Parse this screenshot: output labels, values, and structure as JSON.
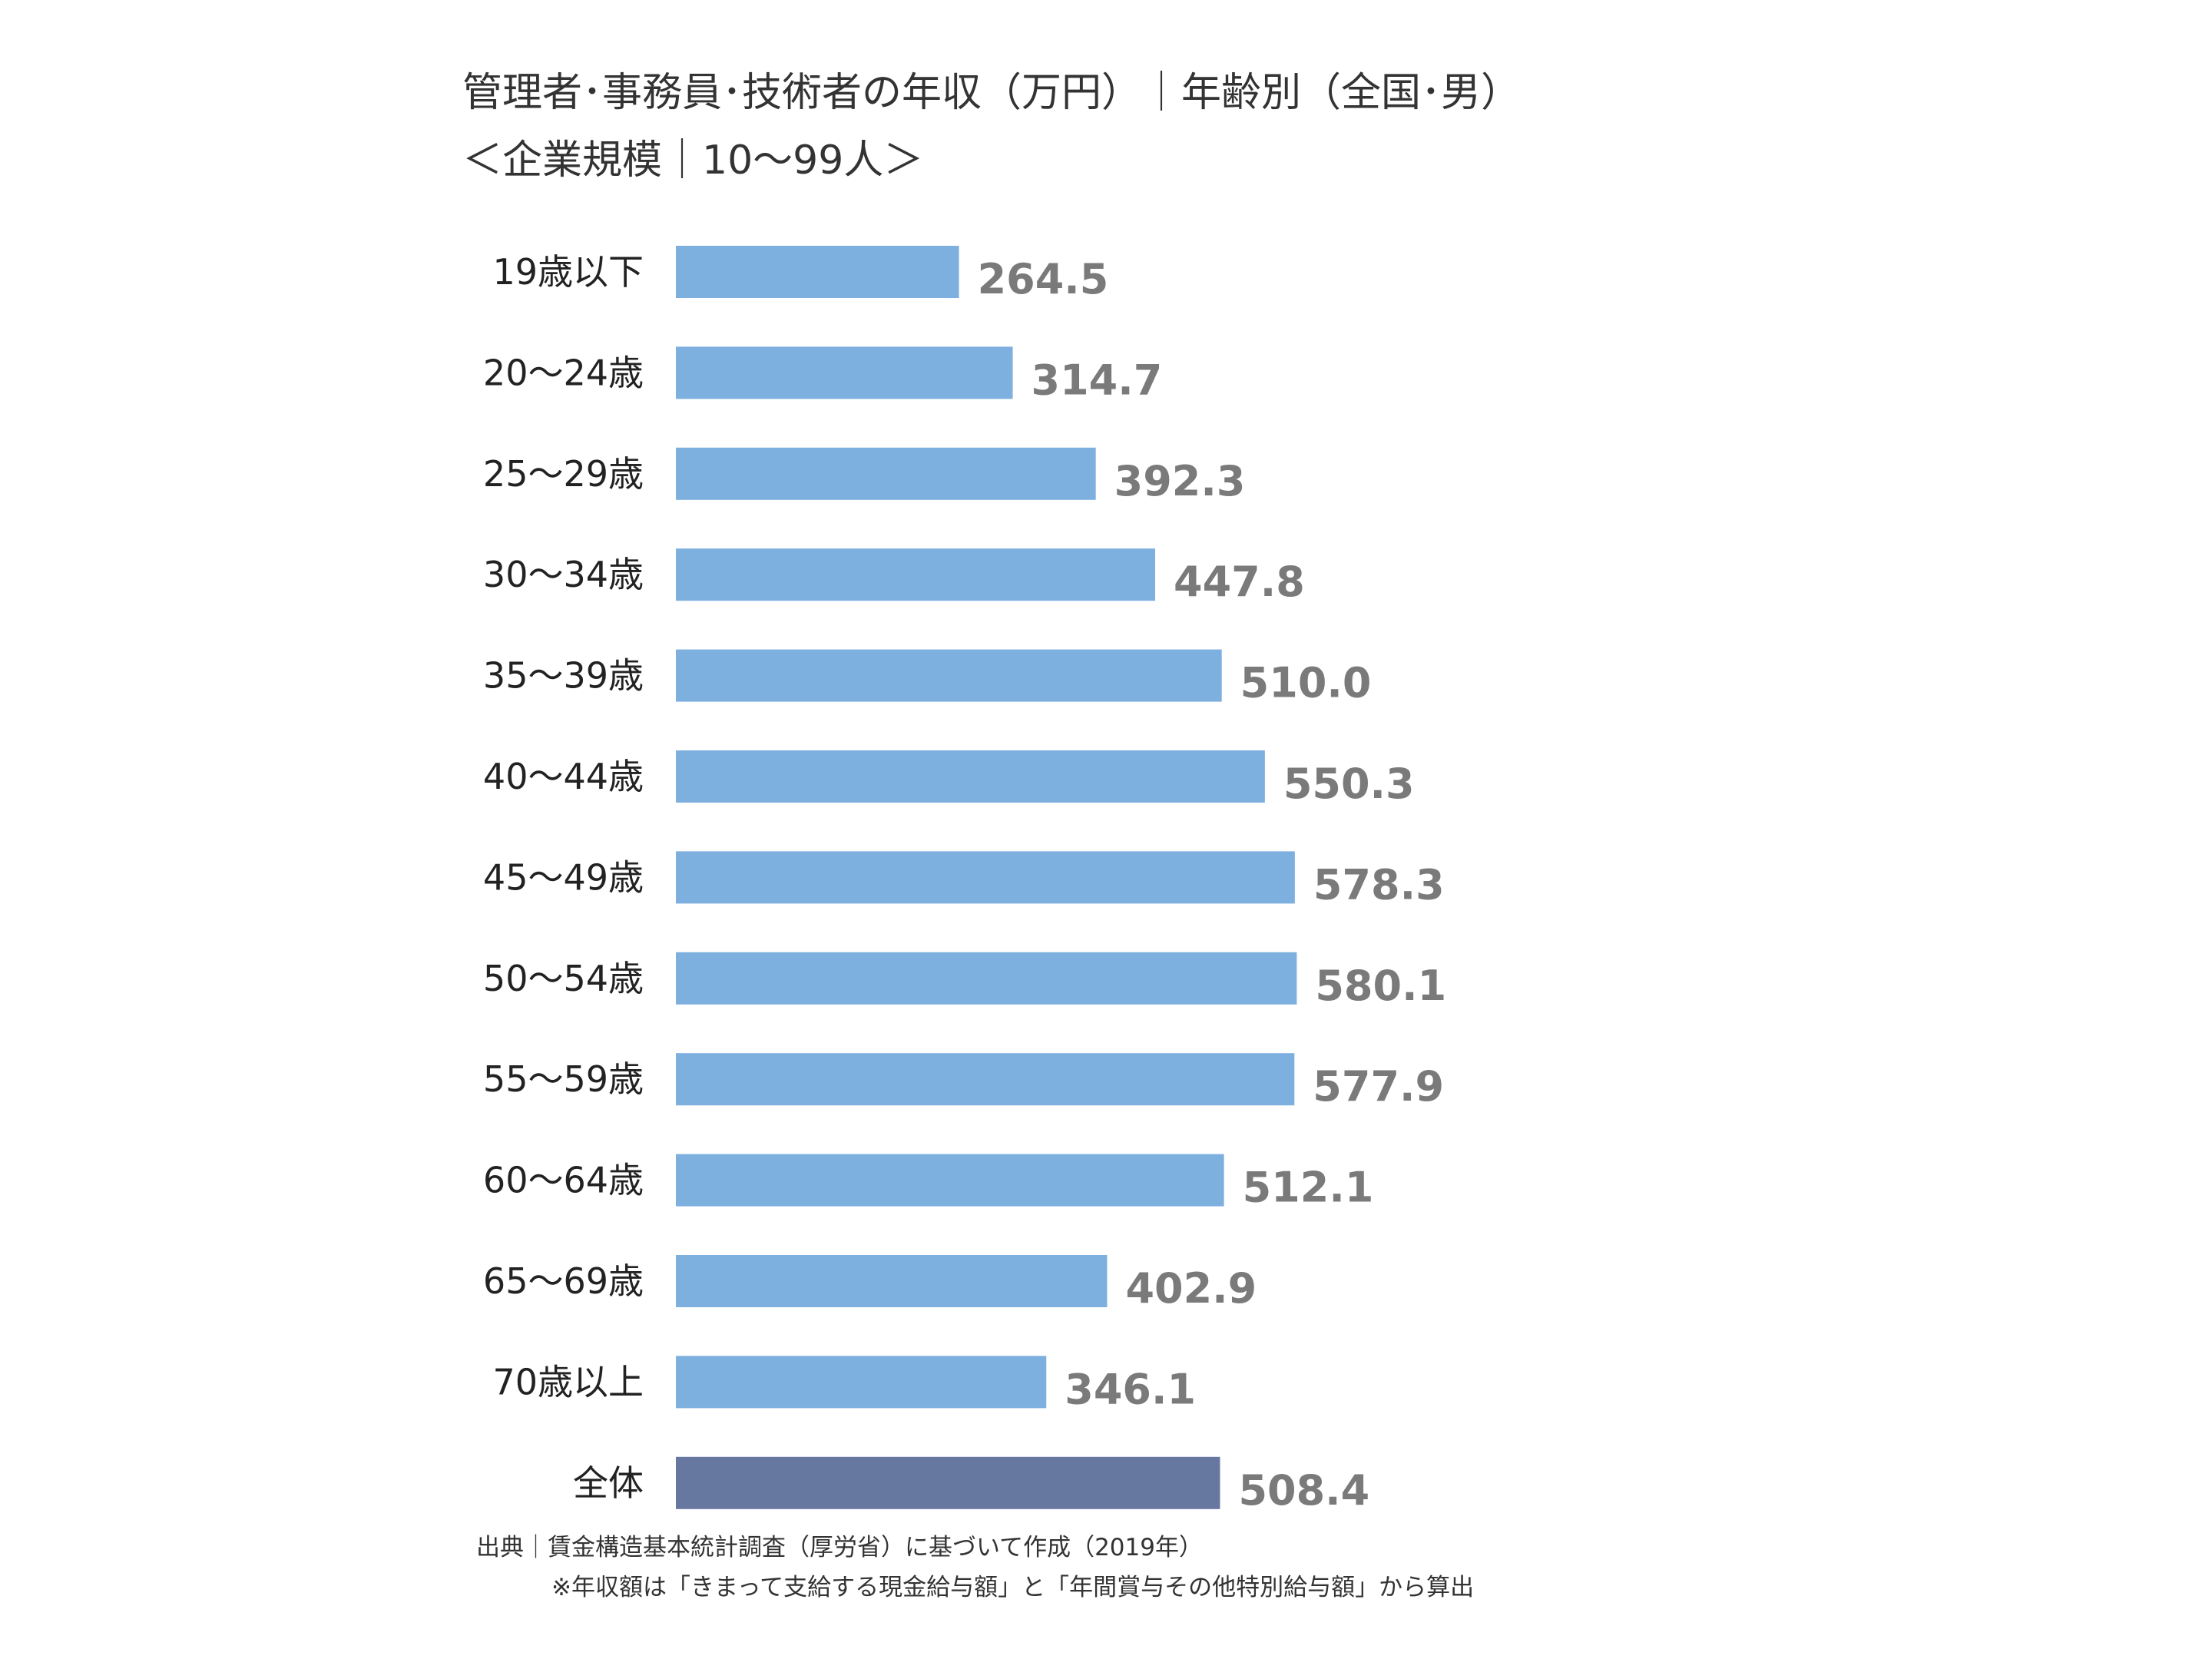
{
  "chart_data": {
    "type": "bar",
    "orientation": "horizontal",
    "title": "管理者･事務員･技術者の年収（万円）｜年齢別（全国･男）",
    "subtitle": "＜企業規模｜10〜99人＞",
    "categories": [
      "19歳以下",
      "20〜24歳",
      "25〜29歳",
      "30〜34歳",
      "35〜39歳",
      "40〜44歳",
      "45〜49歳",
      "50〜54歳",
      "55〜59歳",
      "60〜64歳",
      "65〜69歳",
      "70歳以上",
      "全体"
    ],
    "values": [
      264.5,
      314.7,
      392.3,
      447.8,
      510.0,
      550.3,
      578.3,
      580.1,
      577.9,
      512.1,
      402.9,
      346.1,
      508.4
    ],
    "value_labels": [
      "264.5",
      "314.7",
      "392.3",
      "447.8",
      "510.0",
      "550.3",
      "578.3",
      "580.1",
      "577.9",
      "512.1",
      "402.9",
      "346.1",
      "508.4"
    ],
    "xlim": [
      0,
      580.1
    ],
    "grid": false,
    "colors": {
      "bar": "#7dafdf",
      "highlight_bar": "#6677a0",
      "value_label": "#7a7a7a"
    },
    "highlight_category": "全体"
  },
  "notes": {
    "source": "出典｜賃金構造基本統計調査（厚労省）に基づいて作成（2019年）",
    "footnote": "※年収額は「きまって支給する現金給与額」と「年間賞与その他特別給与額」から算出"
  }
}
